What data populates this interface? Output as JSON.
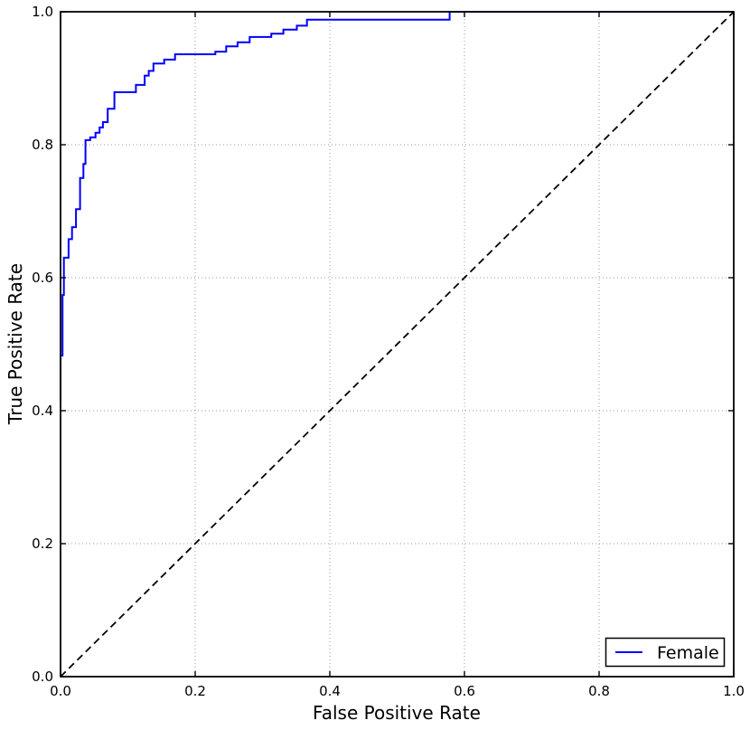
{
  "figure": {
    "background": "#ffffff",
    "plot_border_color": "#000000",
    "grid_color": "#999999"
  },
  "chart_data": {
    "type": "line",
    "subtype": "roc-step-curve",
    "title": "",
    "xlabel": "False Positive Rate",
    "ylabel": "True Positive Rate",
    "xlim": [
      0.0,
      1.0
    ],
    "ylim": [
      0.0,
      1.0
    ],
    "grid": {
      "on": true,
      "style": "dotted",
      "color": "#999999",
      "positions": [
        0.2,
        0.4,
        0.6,
        0.8
      ]
    },
    "xticks": {
      "values": [
        0.0,
        0.2,
        0.4,
        0.6,
        0.8,
        1.0
      ],
      "labels": [
        "0.0",
        "0.2",
        "0.4",
        "0.6",
        "0.8",
        "1.0"
      ]
    },
    "yticks": {
      "values": [
        0.0,
        0.2,
        0.4,
        0.6,
        0.8,
        1.0
      ],
      "labels": [
        "0.0",
        "0.2",
        "0.4",
        "0.6",
        "0.8",
        "1.0"
      ]
    },
    "legend": {
      "position": "lower right",
      "border_color": "#000000",
      "background": "#ffffff"
    },
    "series": [
      {
        "name": "Female",
        "color": "#0000ff",
        "line_style": "solid",
        "step_points": [
          [
            0.0,
            0.413
          ],
          [
            0.0,
            0.483
          ],
          [
            0.003,
            0.483
          ],
          [
            0.003,
            0.574
          ],
          [
            0.005,
            0.574
          ],
          [
            0.005,
            0.63
          ],
          [
            0.012,
            0.63
          ],
          [
            0.012,
            0.658
          ],
          [
            0.017,
            0.658
          ],
          [
            0.017,
            0.676
          ],
          [
            0.023,
            0.676
          ],
          [
            0.023,
            0.703
          ],
          [
            0.029,
            0.703
          ],
          [
            0.029,
            0.75
          ],
          [
            0.034,
            0.75
          ],
          [
            0.034,
            0.771
          ],
          [
            0.037,
            0.771
          ],
          [
            0.037,
            0.807
          ],
          [
            0.044,
            0.807
          ],
          [
            0.044,
            0.811
          ],
          [
            0.052,
            0.811
          ],
          [
            0.052,
            0.818
          ],
          [
            0.058,
            0.818
          ],
          [
            0.058,
            0.826
          ],
          [
            0.063,
            0.826
          ],
          [
            0.063,
            0.834
          ],
          [
            0.07,
            0.834
          ],
          [
            0.07,
            0.854
          ],
          [
            0.08,
            0.854
          ],
          [
            0.08,
            0.879
          ],
          [
            0.112,
            0.879
          ],
          [
            0.112,
            0.89
          ],
          [
            0.125,
            0.89
          ],
          [
            0.125,
            0.904
          ],
          [
            0.131,
            0.904
          ],
          [
            0.131,
            0.911
          ],
          [
            0.138,
            0.911
          ],
          [
            0.138,
            0.922
          ],
          [
            0.154,
            0.922
          ],
          [
            0.154,
            0.928
          ],
          [
            0.17,
            0.928
          ],
          [
            0.17,
            0.936
          ],
          [
            0.23,
            0.936
          ],
          [
            0.23,
            0.94
          ],
          [
            0.246,
            0.94
          ],
          [
            0.246,
            0.948
          ],
          [
            0.263,
            0.948
          ],
          [
            0.263,
            0.954
          ],
          [
            0.281,
            0.954
          ],
          [
            0.281,
            0.962
          ],
          [
            0.313,
            0.962
          ],
          [
            0.313,
            0.967
          ],
          [
            0.331,
            0.967
          ],
          [
            0.331,
            0.973
          ],
          [
            0.351,
            0.973
          ],
          [
            0.351,
            0.979
          ],
          [
            0.366,
            0.979
          ],
          [
            0.366,
            0.988
          ],
          [
            0.578,
            0.988
          ],
          [
            0.578,
            1.0
          ],
          [
            1.0,
            1.0
          ]
        ]
      }
    ],
    "reference_line": {
      "name": "chance-diagonal",
      "color": "#000000",
      "line_style": "dashed",
      "points": [
        [
          0.0,
          0.0
        ],
        [
          1.0,
          1.0
        ]
      ]
    }
  }
}
